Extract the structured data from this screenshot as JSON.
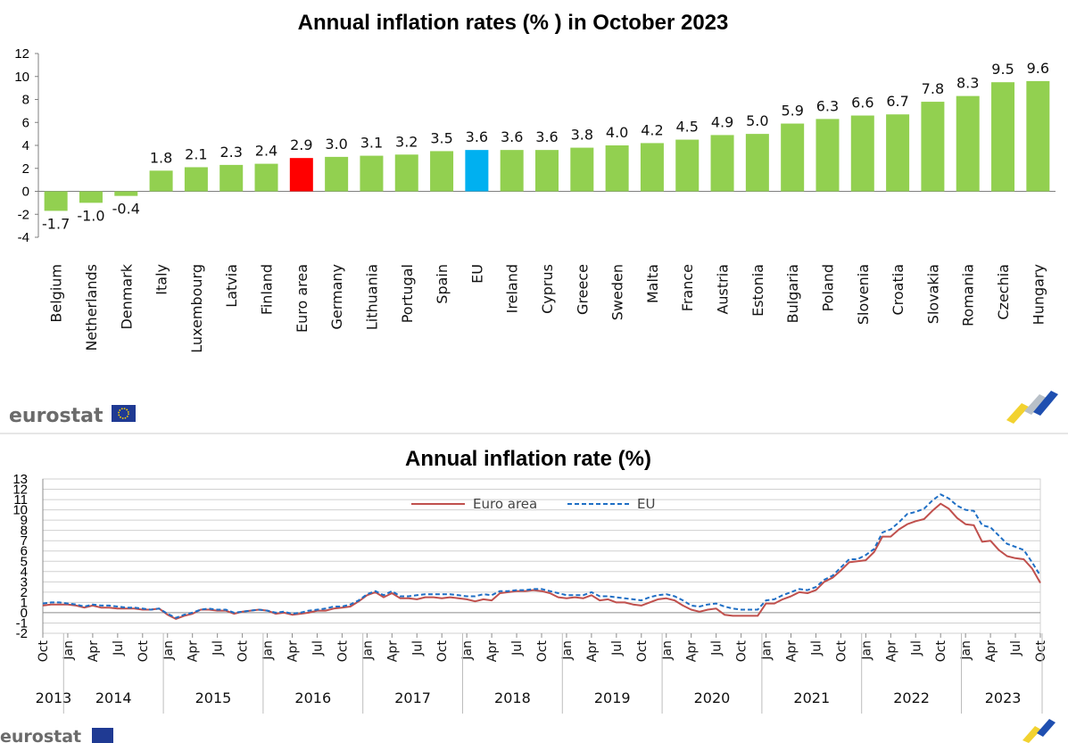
{
  "colors": {
    "bar": "#92d050",
    "euro_area_bar": "#ff0000",
    "eu_bar": "#00b0f0",
    "euro_area_line": "#c0504d",
    "eu_line": "#1f6fc5",
    "logo_flag": "#1f3a93",
    "logo_star": "#ffd400"
  },
  "logos": {
    "top": "eurostat",
    "bottom": "eurostat"
  },
  "chart_data": [
    {
      "type": "bar",
      "title": "Annual inflation rates (% ) in October 2023",
      "xlabel": "",
      "ylabel": "",
      "ylim": [
        -4,
        12
      ],
      "yticks": [
        "12",
        "10",
        "8",
        "6",
        "4",
        "2",
        "0",
        "-2",
        "-4"
      ],
      "categories": [
        "Belgium",
        "Netherlands",
        "Denmark",
        "Italy",
        "Luxembourg",
        "Latvia",
        "Finland",
        "Euro area",
        "Germany",
        "Lithuania",
        "Portugal",
        "Spain",
        "EU",
        "Ireland",
        "Cyprus",
        "Greece",
        "Sweden",
        "Malta",
        "France",
        "Austria",
        "Estonia",
        "Bulgaria",
        "Poland",
        "Slovenia",
        "Croatia",
        "Slovakia",
        "Romania",
        "Czechia",
        "Hungary"
      ],
      "values": [
        -1.7,
        -1.0,
        -0.4,
        1.8,
        2.1,
        2.3,
        2.4,
        2.9,
        3.0,
        3.1,
        3.2,
        3.5,
        3.6,
        3.6,
        3.6,
        3.8,
        4.0,
        4.2,
        4.5,
        4.9,
        5.0,
        5.9,
        6.3,
        6.6,
        6.7,
        7.8,
        8.3,
        9.5,
        9.6
      ],
      "value_labels": [
        "-1.7",
        "-1.0",
        "-0.4",
        "1.8",
        "2.1",
        "2.3",
        "2.4",
        "2.9",
        "3.0",
        "3.1",
        "3.2",
        "3.5",
        "3.6",
        "3.6",
        "3.6",
        "3.8",
        "4.0",
        "4.2",
        "4.5",
        "4.9",
        "5.0",
        "5.9",
        "6.3",
        "6.6",
        "6.7",
        "7.8",
        "8.3",
        "9.5",
        "9.6"
      ],
      "highlight": {
        "Euro area": "euro_area_bar",
        "EU": "eu_bar"
      },
      "grid": false
    },
    {
      "type": "line",
      "title": "Annual inflation rate (%)",
      "xlabel": "",
      "ylabel": "",
      "ylim": [
        -2,
        13
      ],
      "yticks": [
        "13",
        "12",
        "11",
        "10",
        "9",
        "8",
        "7",
        "6",
        "5",
        "4",
        "3",
        "2",
        "1",
        "0",
        "-1",
        "-2"
      ],
      "grid": true,
      "legend": [
        "Euro area",
        "EU"
      ],
      "legend_position": "top-center",
      "month_ticks": [
        "Oct",
        "Jan",
        "Apr",
        "Jul",
        "Oct",
        "Jan",
        "Apr",
        "Jul",
        "Oct",
        "Jan",
        "Apr",
        "Jul",
        "Oct",
        "Jan",
        "Apr",
        "Jul",
        "Oct",
        "Jan",
        "Apr",
        "Jul",
        "Oct",
        "Jan",
        "Apr",
        "Jul",
        "Oct",
        "Jan",
        "Apr",
        "Jul",
        "Oct",
        "Jan",
        "Apr",
        "Jul",
        "Oct",
        "Jan",
        "Apr",
        "Jul",
        "Oct",
        "Jan",
        "Apr",
        "Jul",
        "Oct"
      ],
      "year_labels": [
        "2013",
        "2014",
        "2015",
        "2016",
        "2017",
        "2018",
        "2019",
        "2020",
        "2021",
        "2022",
        "2023"
      ],
      "x_start": "2013-10",
      "x_end": "2023-10",
      "series": [
        {
          "name": "Euro area",
          "values": [
            0.7,
            0.8,
            0.8,
            0.8,
            0.7,
            0.5,
            0.7,
            0.5,
            0.5,
            0.4,
            0.4,
            0.4,
            0.3,
            0.3,
            0.4,
            -0.2,
            -0.6,
            -0.3,
            -0.1,
            0.3,
            0.3,
            0.2,
            0.2,
            -0.1,
            0.1,
            0.2,
            0.3,
            0.2,
            -0.1,
            0.0,
            -0.2,
            -0.1,
            0.0,
            0.2,
            0.2,
            0.4,
            0.5,
            0.6,
            1.1,
            1.7,
            2.0,
            1.5,
            1.9,
            1.4,
            1.4,
            1.3,
            1.5,
            1.5,
            1.4,
            1.5,
            1.4,
            1.3,
            1.1,
            1.3,
            1.2,
            1.9,
            2.0,
            2.1,
            2.1,
            2.2,
            2.1,
            1.9,
            1.5,
            1.4,
            1.5,
            1.4,
            1.7,
            1.2,
            1.3,
            1.0,
            1.0,
            0.8,
            0.7,
            1.0,
            1.3,
            1.4,
            1.2,
            0.7,
            0.3,
            0.1,
            0.3,
            0.4,
            -0.2,
            -0.3,
            -0.3,
            -0.3,
            -0.3,
            0.9,
            0.9,
            1.3,
            1.6,
            2.0,
            1.9,
            2.2,
            3.0,
            3.4,
            4.1,
            4.9,
            5.0,
            5.1,
            5.9,
            7.4,
            7.4,
            8.1,
            8.6,
            8.9,
            9.1,
            9.9,
            10.6,
            10.1,
            9.2,
            8.6,
            8.5,
            6.9,
            7.0,
            6.1,
            5.5,
            5.3,
            5.2,
            4.3,
            2.9
          ]
        },
        {
          "name": "EU",
          "values": [
            0.9,
            1.0,
            1.0,
            0.9,
            0.8,
            0.6,
            0.8,
            0.7,
            0.7,
            0.6,
            0.5,
            0.5,
            0.4,
            0.3,
            0.4,
            -0.1,
            -0.5,
            -0.2,
            0.0,
            0.3,
            0.4,
            0.3,
            0.3,
            0.0,
            0.1,
            0.2,
            0.3,
            0.2,
            0.0,
            0.1,
            -0.1,
            0.0,
            0.2,
            0.3,
            0.4,
            0.6,
            0.6,
            0.8,
            1.2,
            1.8,
            2.1,
            1.7,
            2.1,
            1.6,
            1.6,
            1.7,
            1.8,
            1.8,
            1.8,
            1.8,
            1.7,
            1.6,
            1.6,
            1.8,
            1.7,
            2.1,
            2.1,
            2.2,
            2.2,
            2.3,
            2.3,
            2.1,
            1.9,
            1.7,
            1.7,
            1.7,
            2.0,
            1.6,
            1.6,
            1.5,
            1.4,
            1.3,
            1.2,
            1.5,
            1.7,
            1.8,
            1.6,
            1.2,
            0.7,
            0.6,
            0.8,
            0.9,
            0.6,
            0.4,
            0.3,
            0.3,
            0.3,
            1.2,
            1.3,
            1.7,
            2.0,
            2.3,
            2.2,
            2.5,
            3.2,
            3.6,
            4.4,
            5.2,
            5.2,
            5.6,
            6.2,
            7.8,
            8.1,
            8.8,
            9.6,
            9.8,
            10.1,
            10.9,
            11.5,
            11.1,
            10.4,
            10.0,
            9.9,
            8.5,
            8.3,
            7.5,
            6.7,
            6.4,
            6.1,
            4.9,
            3.6
          ]
        }
      ]
    }
  ]
}
